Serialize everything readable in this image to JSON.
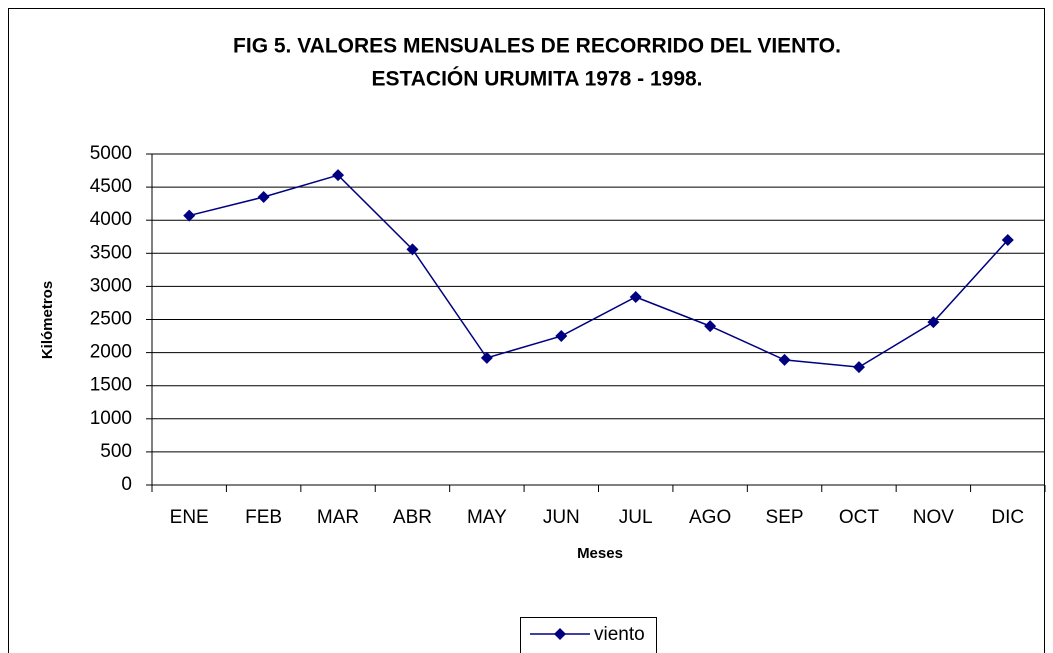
{
  "chart_data": {
    "type": "line",
    "title": [
      "FIG 5. VALORES MENSUALES DE RECORRIDO DEL VIENTO.",
      "ESTACIÓN URUMITA 1978 - 1998."
    ],
    "xlabel": "Meses",
    "ylabel": "Kilómetros",
    "categories": [
      "ENE",
      "FEB",
      "MAR",
      "ABR",
      "MAY",
      "JUN",
      "JUL",
      "AGO",
      "SEP",
      "OCT",
      "NOV",
      "DIC"
    ],
    "series": [
      {
        "name": "viento",
        "color": "#000080",
        "values": [
          4070,
          4350,
          4680,
          3560,
          1920,
          2250,
          2840,
          2400,
          1890,
          1780,
          2460,
          3700
        ]
      }
    ],
    "ylim": [
      0,
      5000
    ],
    "yticks": [
      0,
      500,
      1000,
      1500,
      2000,
      2500,
      3000,
      3500,
      4000,
      4500,
      5000
    ],
    "grid": true,
    "legend": "bottom"
  }
}
